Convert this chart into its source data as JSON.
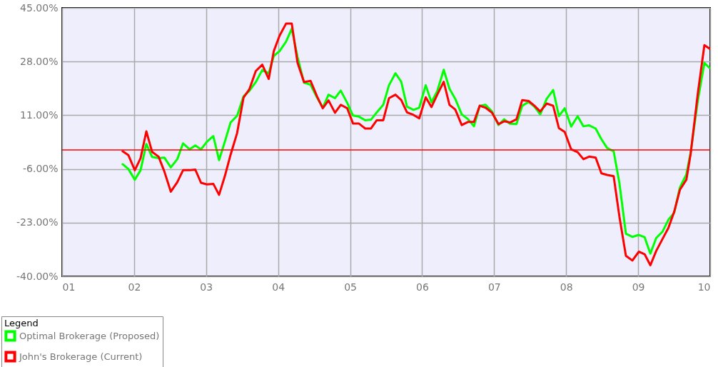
{
  "chart_data": {
    "type": "line",
    "x": [
      2001.84,
      2001.92,
      2002.01,
      2002.09,
      2002.17,
      2002.25,
      2002.34,
      2002.42,
      2002.51,
      2002.6,
      2002.68,
      2002.77,
      2002.85,
      2002.93,
      2003.01,
      2003.1,
      2003.18,
      2003.26,
      2003.34,
      2003.43,
      2003.52,
      2003.6,
      2003.69,
      2003.78,
      2003.87,
      2003.94,
      2004.02,
      2004.11,
      2004.19,
      2004.27,
      2004.36,
      2004.45,
      2004.54,
      2004.62,
      2004.7,
      2004.79,
      2004.87,
      2004.96,
      2005.04,
      2005.12,
      2005.21,
      2005.29,
      2005.37,
      2005.46,
      2005.54,
      2005.63,
      2005.71,
      2005.79,
      2005.88,
      2005.96,
      2006.05,
      2006.13,
      2006.21,
      2006.3,
      2006.38,
      2006.46,
      2006.55,
      2006.64,
      2006.72,
      2006.8,
      2006.88,
      2006.97,
      2007.06,
      2007.14,
      2007.22,
      2007.31,
      2007.39,
      2007.48,
      2007.56,
      2007.64,
      2007.73,
      2007.82,
      2007.9,
      2007.98,
      2008.07,
      2008.16,
      2008.24,
      2008.32,
      2008.41,
      2008.49,
      2008.57,
      2008.66,
      2008.74,
      2008.83,
      2008.92,
      2009.01,
      2009.09,
      2009.17,
      2009.25,
      2009.34,
      2009.42,
      2009.5,
      2009.58,
      2009.67,
      2009.73,
      2009.83,
      2009.92,
      2009.99
    ],
    "series": [
      {
        "name": "Optimal Brokerage (Proposed)",
        "color": "#00ff00",
        "values": [
          -4.5,
          -6.0,
          -9.4,
          -6.4,
          1.9,
          -2.2,
          -2.6,
          -2.4,
          -5.5,
          -2.9,
          2.1,
          0.2,
          1.4,
          0.2,
          2.6,
          4.4,
          -3.2,
          2.6,
          8.7,
          10.8,
          17.0,
          18.7,
          21.5,
          25.3,
          24.3,
          29.8,
          31.3,
          34.3,
          38.4,
          29.4,
          21.3,
          20.7,
          16.6,
          13.4,
          17.5,
          16.4,
          18.8,
          14.9,
          10.9,
          10.6,
          9.4,
          9.6,
          11.9,
          14.3,
          20.5,
          24.3,
          21.6,
          13.7,
          12.7,
          13.4,
          20.5,
          15.1,
          18.6,
          25.4,
          19.4,
          16.2,
          11.3,
          9.7,
          7.5,
          14.0,
          14.3,
          12.2,
          7.9,
          9.7,
          8.3,
          8.2,
          14.0,
          15.2,
          13.7,
          11.3,
          16.2,
          19.0,
          10.7,
          13.2,
          7.4,
          10.7,
          7.5,
          7.8,
          6.8,
          3.4,
          0.6,
          -0.4,
          -10.5,
          -26.5,
          -27.5,
          -26.9,
          -27.6,
          -32.8,
          -27.9,
          -25.8,
          -22.1,
          -19.9,
          -11.9,
          -7.7,
          -0.7,
          15.8,
          27.6,
          26.0
        ]
      },
      {
        "name": "John's Brokerage (Current)",
        "color": "#ff0000",
        "values": [
          -0.4,
          -1.6,
          -6.4,
          -2.6,
          5.9,
          -0.6,
          -2.1,
          -6.8,
          -13.2,
          -10.2,
          -6.4,
          -6.4,
          -6.2,
          -10.4,
          -10.9,
          -10.7,
          -14.2,
          -8.3,
          -1.5,
          5.3,
          16.6,
          19.2,
          25.0,
          27.0,
          22.5,
          31.3,
          36.2,
          40.0,
          40.0,
          27.6,
          21.5,
          21.9,
          17.0,
          13.2,
          15.7,
          11.8,
          14.3,
          13.2,
          8.4,
          8.4,
          6.8,
          6.8,
          9.4,
          9.4,
          16.4,
          17.5,
          15.8,
          11.9,
          11.1,
          10.0,
          16.7,
          13.6,
          17.5,
          21.6,
          14.3,
          12.8,
          7.9,
          8.9,
          8.9,
          14.0,
          13.4,
          11.8,
          8.2,
          9.1,
          8.7,
          9.7,
          15.8,
          15.5,
          14.0,
          12.2,
          14.7,
          14.0,
          6.9,
          5.7,
          0.2,
          -0.7,
          -2.9,
          -2.1,
          -2.4,
          -7.4,
          -7.9,
          -8.3,
          -21.1,
          -33.5,
          -35.0,
          -32.2,
          -33.0,
          -36.5,
          -32.0,
          -28.1,
          -24.7,
          -19.6,
          -12.6,
          -9.4,
          -1.1,
          18.1,
          33.2,
          32.1
        ]
      }
    ],
    "xlim": [
      2001,
      2010
    ],
    "xticks": [
      {
        "value": 2001,
        "label": "01"
      },
      {
        "value": 2002,
        "label": "02"
      },
      {
        "value": 2003,
        "label": "03"
      },
      {
        "value": 2004,
        "label": "04"
      },
      {
        "value": 2005,
        "label": "05"
      },
      {
        "value": 2006,
        "label": "06"
      },
      {
        "value": 2007,
        "label": "07"
      },
      {
        "value": 2008,
        "label": "08"
      },
      {
        "value": 2009,
        "label": "09"
      },
      {
        "value": 2010,
        "label": "10"
      }
    ],
    "ylim": [
      -40,
      45
    ],
    "yticks": [
      {
        "value": 45,
        "label": "45.00%"
      },
      {
        "value": 28,
        "label": "28.00%"
      },
      {
        "value": 11,
        "label": "11.00%"
      },
      {
        "value": -6,
        "label": "-6.00%"
      },
      {
        "value": -23,
        "label": "-23.00%"
      },
      {
        "value": -40,
        "label": "-40.00%"
      }
    ],
    "ref_lines": [
      {
        "axis": "y",
        "value": 0,
        "color": "#ff0000"
      }
    ],
    "grid": true,
    "legend": "bottom left",
    "legend_title": "Legend"
  }
}
